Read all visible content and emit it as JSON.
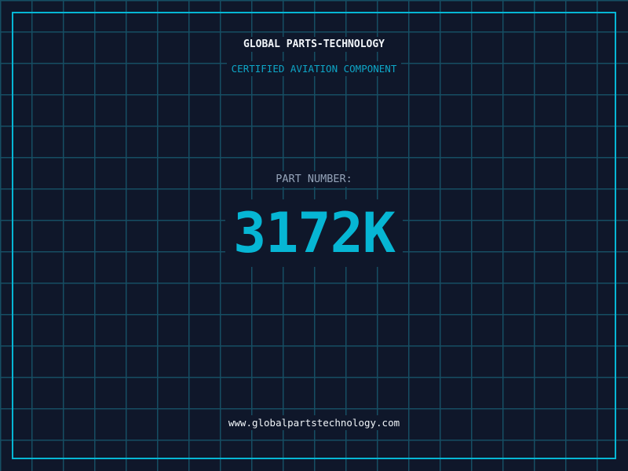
{
  "colors": {
    "background": "#0f172a",
    "grid": "#164e63",
    "accent": "#06b6d4",
    "title": "#f1f5f9",
    "label": "#94a3b8"
  },
  "header": {
    "title": "GLOBAL PARTS-TECHNOLOGY",
    "subtitle": "CERTIFIED AVIATION COMPONENT"
  },
  "part": {
    "label": "PART NUMBER:",
    "number": "3172K"
  },
  "footer": {
    "url": "www.globalpartstechnology.com"
  }
}
